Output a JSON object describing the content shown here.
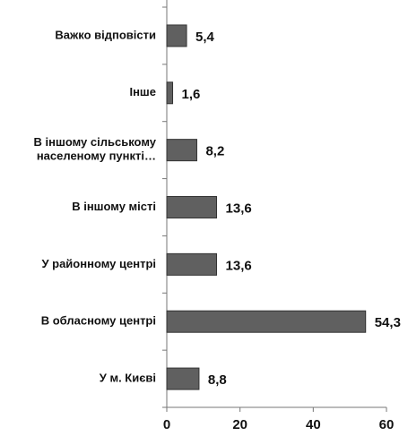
{
  "chart_data": {
    "type": "barh",
    "categories": [
      "Важко відповісти",
      "Інше",
      "В іншому сільському\nнаселеному пункті…",
      "В іншому місті",
      "У районному центрі",
      "В обласному центрі",
      "У м. Києві"
    ],
    "values": [
      5.4,
      1.6,
      8.2,
      13.6,
      13.6,
      54.3,
      8.8
    ],
    "value_labels": [
      "5,4",
      "1,6",
      "8,2",
      "13,6",
      "13,6",
      "54,3",
      "8,8"
    ],
    "color": "#606060",
    "xlim": [
      0,
      60
    ],
    "xticks": [
      0,
      20,
      40,
      60
    ]
  }
}
